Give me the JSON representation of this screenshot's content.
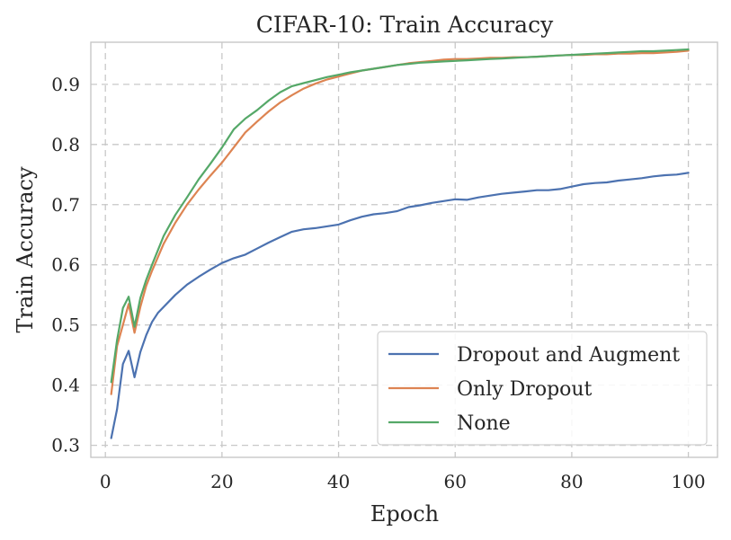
{
  "chart_data": {
    "type": "line",
    "title": "CIFAR-10: Train Accuracy",
    "xlabel": "Epoch",
    "ylabel": "Train Accuracy",
    "xlim": [
      -2.5,
      105
    ],
    "ylim": [
      0.28,
      0.97
    ],
    "xticks": [
      0,
      20,
      40,
      60,
      80,
      100
    ],
    "xtick_labels": [
      "0",
      "20",
      "40",
      "60",
      "80",
      "100"
    ],
    "yticks": [
      0.3,
      0.4,
      0.5,
      0.6,
      0.7,
      0.8,
      0.9
    ],
    "ytick_labels": [
      "0.3",
      "0.4",
      "0.5",
      "0.6",
      "0.7",
      "0.8",
      "0.9"
    ],
    "grid": true,
    "legend_position": "bottom-right",
    "series": [
      {
        "name": "Dropout and Augment",
        "color": "#4c72b0",
        "x": [
          1,
          2,
          3,
          4,
          5,
          6,
          7,
          8,
          9,
          10,
          12,
          14,
          16,
          18,
          20,
          22,
          24,
          26,
          28,
          30,
          32,
          34,
          36,
          38,
          40,
          42,
          44,
          46,
          48,
          50,
          52,
          54,
          56,
          58,
          60,
          62,
          64,
          66,
          68,
          70,
          72,
          74,
          76,
          78,
          80,
          82,
          84,
          86,
          88,
          90,
          92,
          94,
          96,
          98,
          100
        ],
        "values": [
          0.312,
          0.36,
          0.435,
          0.457,
          0.413,
          0.455,
          0.483,
          0.505,
          0.52,
          0.53,
          0.55,
          0.567,
          0.58,
          0.592,
          0.603,
          0.611,
          0.617,
          0.627,
          0.637,
          0.646,
          0.655,
          0.659,
          0.661,
          0.664,
          0.667,
          0.674,
          0.68,
          0.684,
          0.686,
          0.689,
          0.696,
          0.699,
          0.703,
          0.706,
          0.709,
          0.708,
          0.712,
          0.715,
          0.718,
          0.72,
          0.722,
          0.724,
          0.724,
          0.726,
          0.73,
          0.734,
          0.736,
          0.737,
          0.74,
          0.742,
          0.744,
          0.747,
          0.749,
          0.75,
          0.753
        ]
      },
      {
        "name": "Only Dropout",
        "color": "#dd8452",
        "x": [
          1,
          2,
          3,
          4,
          5,
          6,
          7,
          8,
          10,
          12,
          14,
          16,
          18,
          20,
          22,
          24,
          26,
          28,
          30,
          32,
          34,
          36,
          38,
          40,
          42,
          44,
          46,
          48,
          50,
          52,
          54,
          56,
          58,
          60,
          62,
          64,
          66,
          68,
          70,
          72,
          74,
          76,
          78,
          80,
          82,
          84,
          86,
          88,
          90,
          92,
          94,
          96,
          98,
          100
        ],
        "values": [
          0.385,
          0.465,
          0.5,
          0.535,
          0.487,
          0.53,
          0.565,
          0.59,
          0.635,
          0.67,
          0.7,
          0.725,
          0.748,
          0.77,
          0.795,
          0.82,
          0.838,
          0.855,
          0.87,
          0.882,
          0.893,
          0.901,
          0.908,
          0.913,
          0.918,
          0.923,
          0.926,
          0.929,
          0.932,
          0.935,
          0.937,
          0.939,
          0.941,
          0.942,
          0.942,
          0.943,
          0.944,
          0.944,
          0.945,
          0.945,
          0.946,
          0.947,
          0.948,
          0.949,
          0.949,
          0.95,
          0.95,
          0.951,
          0.951,
          0.952,
          0.952,
          0.953,
          0.954,
          0.956
        ]
      },
      {
        "name": "None",
        "color": "#55a868",
        "x": [
          1,
          2,
          3,
          4,
          5,
          6,
          7,
          8,
          10,
          12,
          14,
          16,
          18,
          20,
          22,
          24,
          26,
          28,
          30,
          32,
          34,
          36,
          38,
          40,
          42,
          44,
          46,
          48,
          50,
          52,
          54,
          56,
          58,
          60,
          62,
          64,
          66,
          68,
          70,
          72,
          74,
          76,
          78,
          80,
          82,
          84,
          86,
          88,
          90,
          92,
          94,
          96,
          98,
          100
        ],
        "values": [
          0.405,
          0.475,
          0.528,
          0.547,
          0.497,
          0.545,
          0.575,
          0.6,
          0.648,
          0.683,
          0.712,
          0.742,
          0.768,
          0.795,
          0.825,
          0.843,
          0.857,
          0.873,
          0.887,
          0.897,
          0.902,
          0.907,
          0.912,
          0.916,
          0.92,
          0.923,
          0.926,
          0.929,
          0.932,
          0.934,
          0.936,
          0.937,
          0.938,
          0.939,
          0.94,
          0.941,
          0.942,
          0.943,
          0.944,
          0.945,
          0.946,
          0.947,
          0.948,
          0.949,
          0.95,
          0.951,
          0.952,
          0.953,
          0.954,
          0.955,
          0.955,
          0.956,
          0.957,
          0.958
        ]
      }
    ]
  }
}
